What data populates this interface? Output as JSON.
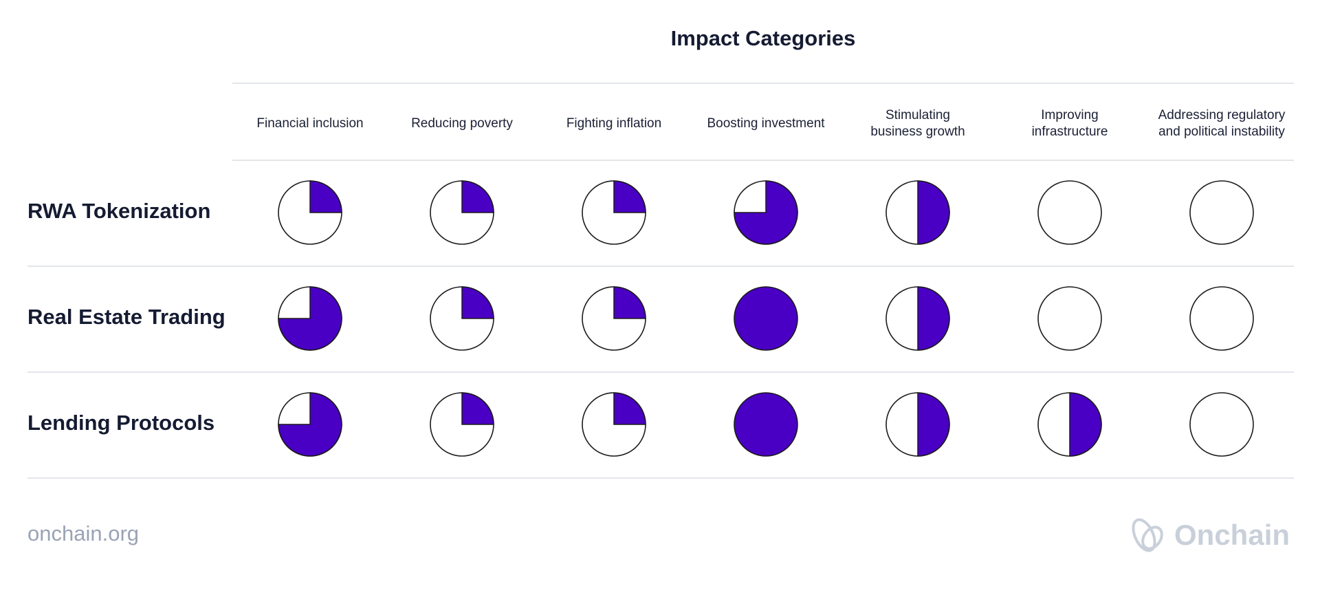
{
  "chart_data": {
    "type": "table",
    "title": "Impact Categories",
    "columns": [
      "Financial inclusion",
      "Reducing poverty",
      "Fighting inflation",
      "Boosting investment",
      "Stimulating\nbusiness growth",
      "Improving\ninfrastructure",
      "Addressing regulatory\nand political instability"
    ],
    "rows": [
      {
        "label": "RWA Tokenization",
        "values": [
          0.25,
          0.25,
          0.25,
          0.75,
          0.5,
          0,
          0
        ]
      },
      {
        "label": "Real Estate Trading",
        "values": [
          0.75,
          0.25,
          0.25,
          1,
          0.5,
          0,
          0
        ]
      },
      {
        "label": "Lending Protocols",
        "values": [
          0.75,
          0.25,
          0.25,
          1,
          0.5,
          0.5,
          0
        ]
      }
    ],
    "fill_color": "#4a00c4",
    "outline_color": "#1b1b1b",
    "empty_color": "#ffffff"
  },
  "footer": {
    "url": "onchain.org",
    "brand": "Onchain",
    "brand_icon": "onchain-logo-icon"
  }
}
